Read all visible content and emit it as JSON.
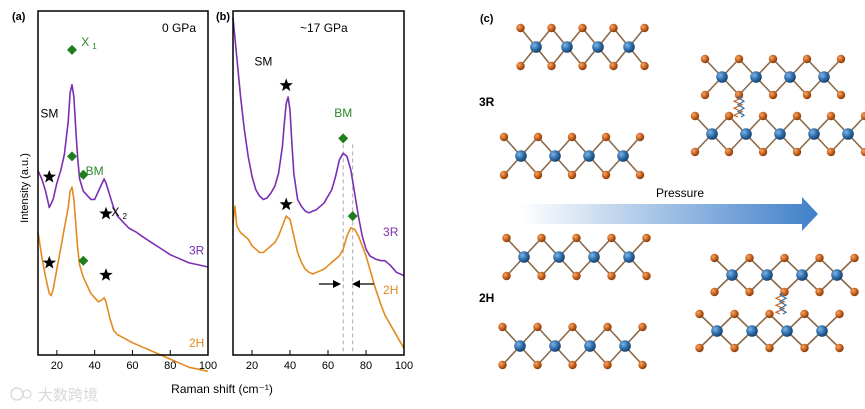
{
  "chart_data": [
    {
      "panel_label": "(a)",
      "type": "line",
      "pressure_label": "0 GPa",
      "xlim": [
        10,
        100
      ],
      "xticks": [
        20,
        40,
        60,
        80,
        100
      ],
      "ylabel": "Intensity (a.u.)",
      "series": [
        {
          "name": "3R",
          "color": "#7b2fb0",
          "x": [
            10,
            12,
            14,
            16,
            18,
            20,
            22,
            24,
            26,
            27,
            28,
            29,
            30,
            31,
            32,
            34,
            36,
            38,
            40,
            42,
            44,
            45,
            46,
            48,
            50,
            52,
            54,
            56,
            58,
            60,
            62,
            65,
            70,
            75,
            80,
            85,
            90,
            95,
            100
          ],
          "y": [
            4.5,
            4.3,
            4.0,
            3.6,
            3.8,
            4.2,
            4.5,
            4.9,
            5.7,
            6.4,
            6.6,
            6.3,
            5.5,
            4.8,
            4.3,
            4.0,
            3.9,
            3.8,
            3.8,
            4.0,
            4.2,
            4.3,
            4.2,
            3.9,
            3.6,
            3.4,
            3.3,
            3.2,
            3.1,
            3.05,
            3.0,
            2.9,
            2.75,
            2.6,
            2.45,
            2.35,
            2.25,
            2.2,
            2.15
          ]
        },
        {
          "name": "2H",
          "color": "#e38a1e",
          "x": [
            10,
            12,
            14,
            16,
            17,
            18,
            20,
            22,
            24,
            26,
            27,
            28,
            29,
            30,
            31,
            32,
            34,
            36,
            38,
            40,
            42,
            44,
            45,
            46,
            48,
            50,
            52,
            54,
            56,
            58,
            60,
            65,
            70,
            75,
            80,
            85,
            90,
            95,
            100
          ],
          "y": [
            3.0,
            2.4,
            1.9,
            1.5,
            1.45,
            1.6,
            2.1,
            2.6,
            3.1,
            3.6,
            4.0,
            4.1,
            3.8,
            3.2,
            2.6,
            2.2,
            1.9,
            1.7,
            1.5,
            1.4,
            1.3,
            1.35,
            1.4,
            1.3,
            0.9,
            0.6,
            0.5,
            0.45,
            0.4,
            0.35,
            0.3,
            0.2,
            0.1,
            0.0,
            -0.1,
            -0.2,
            -0.3,
            -0.35,
            -0.4
          ]
        }
      ],
      "annotations": [
        {
          "text": "SM",
          "x": 16,
          "y": 5.8,
          "color": "#000000"
        },
        {
          "text": "X",
          "sub": "1",
          "x": 37,
          "y": 7.55,
          "color": "#2b8a2b"
        },
        {
          "text": "BM",
          "x": 40,
          "y": 4.4,
          "color": "#2b8a2b"
        },
        {
          "text": "X",
          "sub": "2",
          "x": 53,
          "y": 3.4,
          "color": "#000000"
        }
      ],
      "markers": [
        {
          "shape": "diamond",
          "color": "#1e7e1e",
          "x": 28,
          "y": 7.45
        },
        {
          "shape": "star",
          "color": "#000000",
          "x": 16,
          "y": 4.35
        },
        {
          "shape": "diamond",
          "color": "#1e7e1e",
          "x": 34,
          "y": 4.4
        },
        {
          "shape": "star",
          "color": "#000000",
          "x": 46,
          "y": 3.45
        },
        {
          "shape": "diamond",
          "color": "#1e7e1e",
          "x": 28,
          "y": 4.85
        },
        {
          "shape": "star",
          "color": "#000000",
          "x": 16,
          "y": 2.25
        },
        {
          "shape": "diamond",
          "color": "#1e7e1e",
          "x": 34,
          "y": 2.3
        },
        {
          "shape": "star",
          "color": "#000000",
          "x": 46,
          "y": 1.95
        }
      ],
      "series_labels": [
        {
          "text": "3R",
          "x": 94,
          "y": 2.45,
          "color": "#7b2fb0"
        },
        {
          "text": "2H",
          "x": 94,
          "y": 0.2,
          "color": "#e38a1e"
        }
      ]
    },
    {
      "panel_label": "(b)",
      "type": "line",
      "pressure_label": "~17 GPa",
      "xlim": [
        10,
        100
      ],
      "xticks": [
        20,
        40,
        60,
        80,
        100
      ],
      "series": [
        {
          "name": "3R",
          "color": "#7b2fb0",
          "x": [
            10,
            12,
            14,
            16,
            18,
            20,
            22,
            24,
            26,
            28,
            30,
            32,
            34,
            36,
            37,
            38,
            39,
            40,
            41,
            42,
            44,
            46,
            48,
            50,
            52,
            54,
            56,
            58,
            60,
            62,
            64,
            66,
            68,
            70,
            72,
            74,
            76,
            78,
            80,
            82,
            85,
            88,
            90,
            93,
            96,
            100
          ],
          "y": [
            10.2,
            9.0,
            7.8,
            6.8,
            6.0,
            5.4,
            5.0,
            4.8,
            4.7,
            4.75,
            4.9,
            5.1,
            5.5,
            6.3,
            7.0,
            7.6,
            7.8,
            7.4,
            6.4,
            5.5,
            4.7,
            4.5,
            4.35,
            4.3,
            4.35,
            4.4,
            4.5,
            4.6,
            4.8,
            5.0,
            5.4,
            5.9,
            6.1,
            6.0,
            5.6,
            4.9,
            4.2,
            3.6,
            3.2,
            3.0,
            2.9,
            2.85,
            2.85,
            2.7,
            2.5,
            2.4
          ]
        },
        {
          "name": "2H",
          "color": "#e38a1e",
          "x": [
            10,
            11,
            12,
            14,
            16,
            18,
            20,
            22,
            24,
            26,
            28,
            30,
            32,
            34,
            36,
            38,
            40,
            42,
            44,
            46,
            48,
            50,
            52,
            54,
            56,
            58,
            60,
            62,
            64,
            66,
            68,
            70,
            72,
            74,
            76,
            78,
            80,
            82,
            85,
            88,
            90,
            93,
            96,
            100
          ],
          "y": [
            4.0,
            4.5,
            3.9,
            3.7,
            3.6,
            3.5,
            3.3,
            3.2,
            3.1,
            3.1,
            3.2,
            3.3,
            3.4,
            3.6,
            3.9,
            4.2,
            4.1,
            3.6,
            3.1,
            2.8,
            2.6,
            2.5,
            2.45,
            2.5,
            2.55,
            2.6,
            2.7,
            2.8,
            2.9,
            3.0,
            3.2,
            3.6,
            3.85,
            3.8,
            3.6,
            3.3,
            3.0,
            2.6,
            2.0,
            1.5,
            1.2,
            0.9,
            0.6,
            0.2
          ]
        }
      ],
      "annotations": [
        {
          "text": "SM",
          "x": 26,
          "y": 8.75,
          "color": "#000000"
        },
        {
          "text": "BM",
          "x": 68,
          "y": 7.2,
          "color": "#2b8a2b"
        }
      ],
      "markers": [
        {
          "shape": "star",
          "color": "#000000",
          "x": 38,
          "y": 8.15
        },
        {
          "shape": "diamond",
          "color": "#1e7e1e",
          "x": 68,
          "y": 6.55
        },
        {
          "shape": "star",
          "color": "#000000",
          "x": 38,
          "y": 4.55
        },
        {
          "shape": "diamond",
          "color": "#1e7e1e",
          "x": 73,
          "y": 4.2
        }
      ],
      "series_labels": [
        {
          "text": "3R",
          "x": 93,
          "y": 3.6,
          "color": "#7b2fb0"
        },
        {
          "text": "2H",
          "x": 93,
          "y": 1.85,
          "color": "#e38a1e"
        }
      ],
      "reference_lines": [
        68,
        73
      ]
    }
  ],
  "shared_xlabel": "Raman shift (cm⁻¹)",
  "structure_panel": {
    "panel_label": "(c)",
    "row_labels": [
      "3R",
      "2H"
    ],
    "arrow_label": "Pressure",
    "arrow_color": "#3f7fc9",
    "metal_color": "#2f6eaa",
    "chalcogen_color": "#c8621c"
  },
  "watermark": "大数跨境"
}
